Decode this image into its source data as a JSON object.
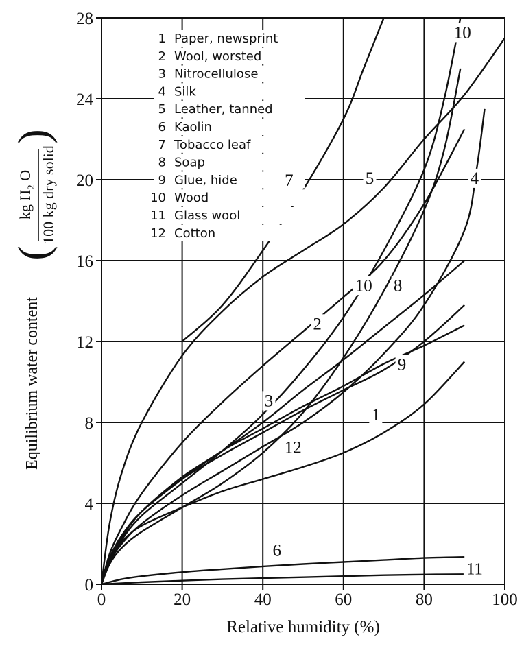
{
  "chart_data": {
    "type": "line",
    "xlabel": "Relative humidity (%)",
    "ylabel": {
      "prefix": "Equilibrium water content",
      "numerator_main": "kg H",
      "numerator_sub": "2",
      "numerator_tail": "O",
      "denominator": "100 kg dry solid"
    },
    "xlim": [
      0,
      100
    ],
    "ylim": [
      0,
      28
    ],
    "x_ticks": [
      0,
      20,
      40,
      60,
      80,
      100
    ],
    "y_ticks": [
      0,
      4,
      8,
      12,
      16,
      20,
      24,
      28
    ],
    "grid": true,
    "legend_position": "top-left",
    "legend": [
      "1  Paper, newsprint",
      "2  Wool, worsted",
      "3  Nitrocellulose",
      "4  Silk",
      "5  Leather, tanned",
      "6  Kaolin",
      "7  Tobacco leaf",
      "8  Soap",
      "9  Glue, hide",
      "10  Wood",
      "11  Glass wool",
      "12  Cotton"
    ],
    "series": [
      {
        "name": "1",
        "x": [
          0,
          2,
          5,
          10,
          20,
          30,
          40,
          50,
          60,
          70,
          80,
          90
        ],
        "y": [
          0,
          1.2,
          2.1,
          2.9,
          3.8,
          4.6,
          5.2,
          5.8,
          6.5,
          7.5,
          8.9,
          11.0
        ]
      },
      {
        "name": "2",
        "x": [
          0,
          2,
          5,
          10,
          20,
          30,
          40,
          50,
          60,
          70,
          80,
          90
        ],
        "y": [
          0,
          1.5,
          2.8,
          4.5,
          7.0,
          9.0,
          10.8,
          12.5,
          14.2,
          16.0,
          18.8,
          22.5
        ]
      },
      {
        "name": "3",
        "x": [
          0,
          2,
          5,
          10,
          20,
          30,
          40,
          50,
          60,
          70,
          80,
          90
        ],
        "y": [
          0,
          1.2,
          2.3,
          3.6,
          5.3,
          6.6,
          8.0,
          9.6,
          11.1,
          12.7,
          14.3,
          16.0
        ]
      },
      {
        "name": "4",
        "x": [
          0,
          2,
          5,
          10,
          20,
          30,
          40,
          50,
          60,
          70,
          80,
          90,
          93,
          95
        ],
        "y": [
          0,
          1.1,
          2.0,
          3.0,
          4.4,
          5.6,
          6.8,
          8.0,
          9.5,
          11.4,
          13.8,
          17.5,
          20.5,
          23.5
        ]
      },
      {
        "name": "5",
        "x": [
          0,
          2,
          5,
          10,
          20,
          30,
          40,
          50,
          60,
          70,
          80,
          90,
          100
        ],
        "y": [
          0,
          3.0,
          5.5,
          8.0,
          11.3,
          13.5,
          15.2,
          16.5,
          17.8,
          19.6,
          22.0,
          24.2,
          27.0
        ]
      },
      {
        "name": "6",
        "x": [
          0,
          5,
          10,
          20,
          30,
          40,
          50,
          60,
          70,
          80,
          90
        ],
        "y": [
          0,
          0.25,
          0.4,
          0.6,
          0.75,
          0.88,
          1.0,
          1.1,
          1.2,
          1.3,
          1.35
        ]
      },
      {
        "name": "7",
        "x": [
          20,
          30,
          40,
          50,
          60,
          65,
          70
        ],
        "y": [
          12.0,
          13.8,
          16.5,
          19.5,
          23.0,
          25.5,
          28.0
        ]
      },
      {
        "name": "8",
        "x": [
          0,
          2,
          5,
          10,
          20,
          30,
          40,
          50,
          60,
          70,
          80,
          85,
          89
        ],
        "y": [
          0,
          1.0,
          1.8,
          2.6,
          3.8,
          5.0,
          6.5,
          8.5,
          11.2,
          14.5,
          18.5,
          21.5,
          25.5
        ]
      },
      {
        "name": "9",
        "x": [
          0,
          2,
          5,
          10,
          20,
          30,
          40,
          50,
          60,
          70,
          80,
          90
        ],
        "y": [
          0,
          1.3,
          2.4,
          3.6,
          5.2,
          6.4,
          7.5,
          8.6,
          9.6,
          10.6,
          12.0,
          13.8
        ]
      },
      {
        "name": "10",
        "x": [
          0,
          2,
          5,
          10,
          20,
          30,
          40,
          50,
          60,
          70,
          80,
          85,
          89
        ],
        "y": [
          0,
          1.2,
          2.2,
          3.4,
          5.0,
          6.6,
          8.4,
          10.6,
          13.2,
          16.5,
          20.5,
          24.0,
          28.0
        ]
      },
      {
        "name": "11",
        "x": [
          0,
          10,
          20,
          30,
          40,
          50,
          60,
          70,
          80,
          90
        ],
        "y": [
          0,
          0.1,
          0.18,
          0.25,
          0.3,
          0.35,
          0.4,
          0.45,
          0.48,
          0.5
        ]
      },
      {
        "name": "12",
        "x": [
          0,
          2,
          5,
          10,
          20,
          30,
          40,
          50,
          60,
          70,
          80,
          90
        ],
        "y": [
          0,
          1.3,
          2.4,
          3.6,
          5.2,
          6.6,
          7.7,
          8.8,
          9.8,
          10.9,
          11.8,
          12.8
        ]
      }
    ],
    "curve_labels": [
      {
        "text": "1",
        "x": 68,
        "y": 8.1
      },
      {
        "text": "2",
        "x": 53.5,
        "y": 12.6
      },
      {
        "text": "3",
        "x": 41.5,
        "y": 8.8
      },
      {
        "text": "4",
        "x": 92.5,
        "y": 19.8
      },
      {
        "text": "5",
        "x": 66.5,
        "y": 19.8
      },
      {
        "text": "6",
        "x": 43.5,
        "y": 1.4
      },
      {
        "text": "7",
        "x": 46.5,
        "y": 19.7
      },
      {
        "text": "8",
        "x": 73.5,
        "y": 14.5
      },
      {
        "text": "9",
        "x": 74.5,
        "y": 10.6
      },
      {
        "text": "10",
        "x": 65.0,
        "y": 14.5
      },
      {
        "text": "10",
        "x": 89.5,
        "y": 27.0
      },
      {
        "text": "11",
        "x": 92.5,
        "y": 0.5
      },
      {
        "text": "12",
        "x": 47.5,
        "y": 6.5
      }
    ]
  }
}
